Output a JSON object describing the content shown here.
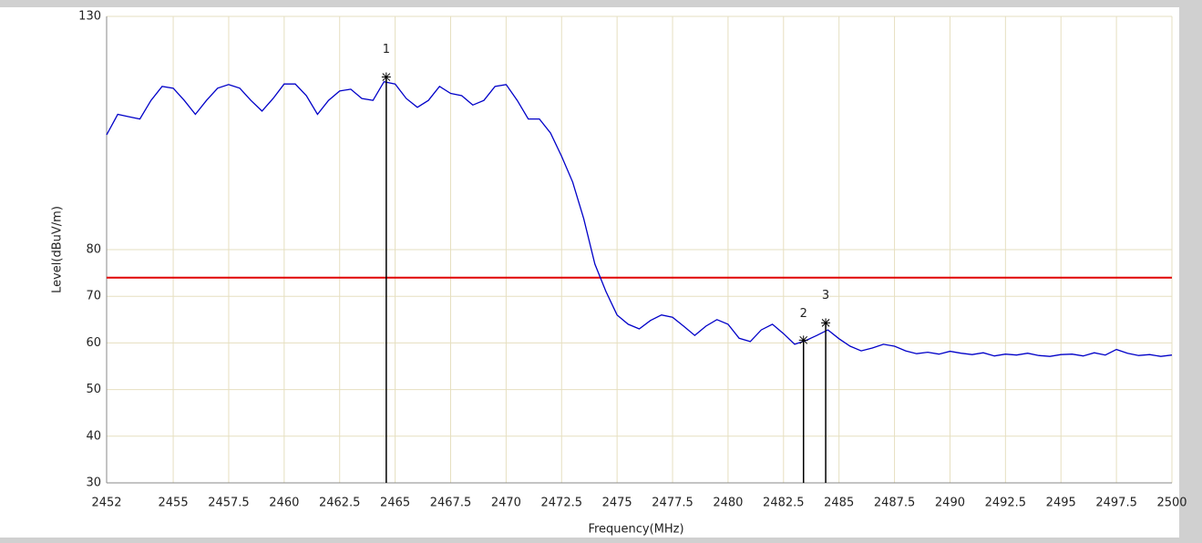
{
  "chart_data": {
    "type": "line",
    "xlabel": "Frequency(MHz)",
    "ylabel": "Level(dBuV/m)",
    "x": [
      2452,
      2452.5,
      2453,
      2453.5,
      2454,
      2454.5,
      2455,
      2455.5,
      2456,
      2456.5,
      2457,
      2457.5,
      2458,
      2458.5,
      2459,
      2459.5,
      2460,
      2460.5,
      2461,
      2461.5,
      2462,
      2462.5,
      2463,
      2463.5,
      2464,
      2464.5,
      2465,
      2465.5,
      2466,
      2466.5,
      2467,
      2467.5,
      2468,
      2468.5,
      2469,
      2469.5,
      2470,
      2470.5,
      2471,
      2471.5,
      2472,
      2472.5,
      2473,
      2473.5,
      2474,
      2474.5,
      2475,
      2475.5,
      2476,
      2476.5,
      2477,
      2477.5,
      2478,
      2478.5,
      2479,
      2479.5,
      2480,
      2480.5,
      2481,
      2481.5,
      2482,
      2482.5,
      2483,
      2483.5,
      2484,
      2484.5,
      2485,
      2485.5,
      2486,
      2486.5,
      2487,
      2487.5,
      2488,
      2488.5,
      2489,
      2489.5,
      2490,
      2490.5,
      2491,
      2491.5,
      2492,
      2492.5,
      2493,
      2493.5,
      2494,
      2494.5,
      2495,
      2495.5,
      2496,
      2496.5,
      2497,
      2497.5,
      2498,
      2498.5,
      2499,
      2499.5,
      2500
    ],
    "series": [
      {
        "color": "#0000c8",
        "values": [
          104.6,
          109,
          108.5,
          108,
          112,
          115,
          114.6,
          112,
          109,
          112,
          114.6,
          115.4,
          114.6,
          112,
          109.7,
          112.4,
          115.5,
          115.5,
          113,
          109,
          112,
          114,
          114.4,
          112.4,
          112,
          116,
          115.5,
          112.4,
          110.5,
          112,
          115,
          113.5,
          113,
          111,
          112,
          115,
          115.4,
          112,
          108,
          108,
          105,
          100,
          94.5,
          86.6,
          76.9,
          71,
          66,
          64,
          63,
          64.8,
          66,
          65.5,
          63.6,
          61.6,
          63.6,
          65,
          64,
          61,
          60.3,
          62.8,
          64,
          62,
          59.7,
          60.5,
          61.6,
          62.8,
          60.9,
          59.3,
          58.3,
          58.9,
          59.7,
          59.3,
          58.3,
          57.7,
          58,
          57.6,
          58.2,
          57.8,
          57.5,
          57.9,
          57.2,
          57.6,
          57.4,
          57.8,
          57.3,
          57.1,
          57.5,
          57.6,
          57.2,
          57.9,
          57.4,
          58.6,
          57.8,
          57.3,
          57.5,
          57.1,
          57.4
        ]
      }
    ],
    "limit_line": {
      "value": 74,
      "color": "#e00000"
    },
    "markers": [
      {
        "label": "1",
        "x": 2464.6,
        "y": 117
      },
      {
        "label": "2",
        "x": 2483.4,
        "y": 60.6
      },
      {
        "label": "3",
        "x": 2484.4,
        "y": 64.3
      }
    ],
    "xlim": [
      2452,
      2500
    ],
    "ylim": [
      30,
      130
    ],
    "xticks": [
      2452,
      2455,
      2457.5,
      2460,
      2462.5,
      2465,
      2467.5,
      2470,
      2472.5,
      2475,
      2477.5,
      2480,
      2482.5,
      2485,
      2487.5,
      2490,
      2492.5,
      2495,
      2497.5,
      2500
    ],
    "yticks": [
      30,
      40,
      50,
      60,
      70,
      80,
      130
    ],
    "grid": true
  }
}
